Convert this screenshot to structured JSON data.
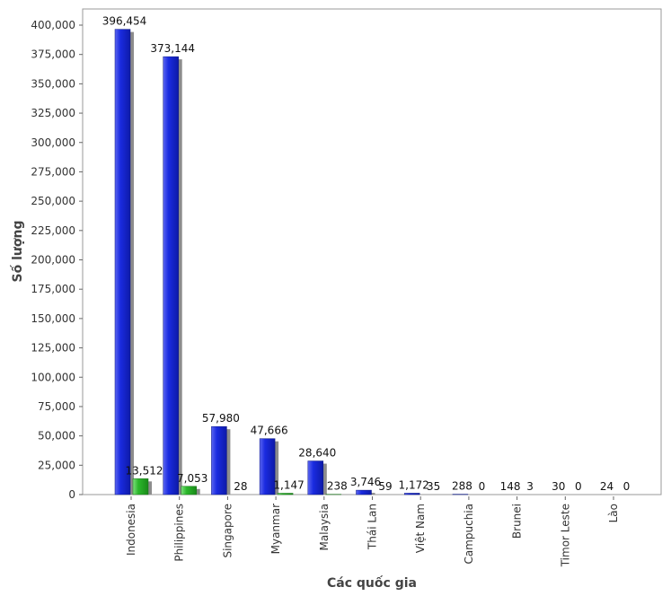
{
  "chart_data": {
    "type": "bar",
    "title": "",
    "xlabel": "Các quốc gia",
    "ylabel": "Số lượng",
    "ylim": [
      0,
      400000
    ],
    "yticks": [
      0,
      25000,
      50000,
      75000,
      100000,
      125000,
      150000,
      175000,
      200000,
      225000,
      250000,
      275000,
      300000,
      325000,
      350000,
      375000,
      400000
    ],
    "ytick_labels": [
      "0",
      "25,000",
      "50,000",
      "75,000",
      "100,000",
      "125,000",
      "150,000",
      "175,000",
      "200,000",
      "225,000",
      "250,000",
      "275,000",
      "300,000",
      "325,000",
      "350,000",
      "375,000",
      "400,000"
    ],
    "categories": [
      "Indonesia",
      "Philippines",
      "Singapore",
      "Myanmar",
      "Malaysia",
      "Thái Lan",
      "Việt Nam",
      "Campuchia",
      "Brunei",
      "Timor Leste",
      "Lào"
    ],
    "series": [
      {
        "color": "#1a2be0",
        "values": [
          396454,
          373144,
          57980,
          47666,
          28640,
          3746,
          1172,
          288,
          148,
          30,
          24
        ],
        "labels": [
          "396,454",
          "373,144",
          "57,980",
          "47,666",
          "28,640",
          "3,746",
          "1,172",
          "288",
          "148",
          "30",
          "24"
        ]
      },
      {
        "color": "#2cb82c",
        "values": [
          13512,
          7053,
          28,
          1147,
          238,
          59,
          35,
          0,
          3,
          0,
          0
        ],
        "labels": [
          "13,512",
          "7,053",
          "28",
          "1,147",
          "238",
          "59",
          "35",
          "0",
          "3",
          "0",
          "0"
        ]
      }
    ],
    "grid": false,
    "legend": "none"
  }
}
